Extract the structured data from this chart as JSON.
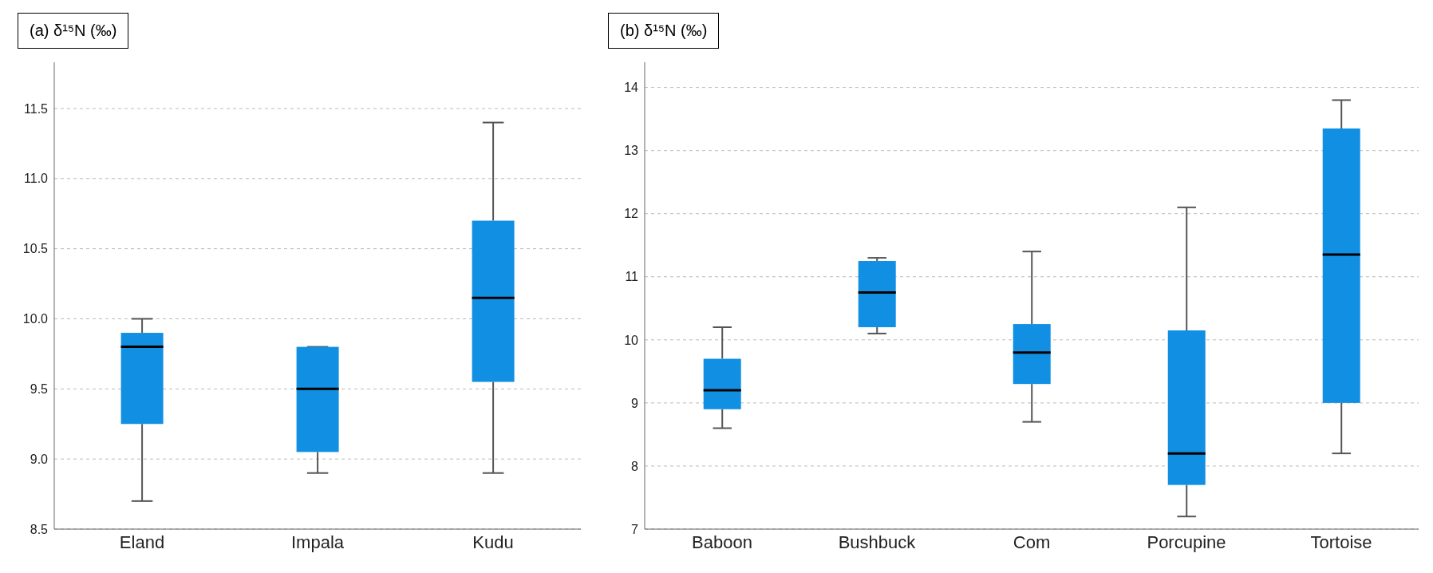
{
  "chart_data": [
    {
      "type": "box",
      "ylabel": "(a) δ¹⁵N (‰)",
      "categories": [
        "Eland",
        "Impala",
        "Kudu"
      ],
      "color": "#1190e3",
      "boxes": [
        {
          "low": 8.7,
          "q1": 9.25,
          "median": 9.8,
          "q3": 9.9,
          "high": 10.0
        },
        {
          "low": 8.9,
          "q1": 9.05,
          "median": 9.5,
          "q3": 9.8,
          "high": 9.8
        },
        {
          "low": 8.9,
          "q1": 9.55,
          "median": 10.15,
          "q3": 10.7,
          "high": 11.4
        }
      ],
      "ylim": [
        8.5,
        11.83
      ],
      "yticks": [
        {
          "value": 8.5,
          "label": "8.5"
        },
        {
          "value": 9,
          "label": "9.0"
        },
        {
          "value": 9.5,
          "label": "9.5"
        },
        {
          "value": 10,
          "label": "10.0"
        },
        {
          "value": 10.5,
          "label": "10.5"
        },
        {
          "value": 11,
          "label": "11.0"
        },
        {
          "value": 11.5,
          "label": "11.5"
        }
      ],
      "grid": "y"
    },
    {
      "type": "box",
      "ylabel": "(b) δ¹⁵N (‰)",
      "categories": [
        "Baboon",
        "Bushbuck",
        "Com",
        "Porcupine",
        "Tortoise"
      ],
      "color": "#1190e3",
      "boxes": [
        {
          "low": 8.6,
          "q1": 8.9,
          "median": 9.2,
          "q3": 9.7,
          "high": 10.2
        },
        {
          "low": 10.1,
          "q1": 10.2,
          "median": 10.75,
          "q3": 11.25,
          "high": 11.3
        },
        {
          "low": 8.7,
          "q1": 9.3,
          "median": 9.8,
          "q3": 10.25,
          "high": 11.4
        },
        {
          "low": 7.2,
          "q1": 7.7,
          "median": 8.2,
          "q3": 10.15,
          "high": 12.1
        },
        {
          "low": 8.2,
          "q1": 9.0,
          "median": 11.35,
          "q3": 13.35,
          "high": 13.8
        }
      ],
      "ylim": [
        7,
        14.4
      ],
      "yticks": [
        7,
        8,
        9,
        10,
        11,
        12,
        13,
        14
      ],
      "grid": "y"
    }
  ]
}
